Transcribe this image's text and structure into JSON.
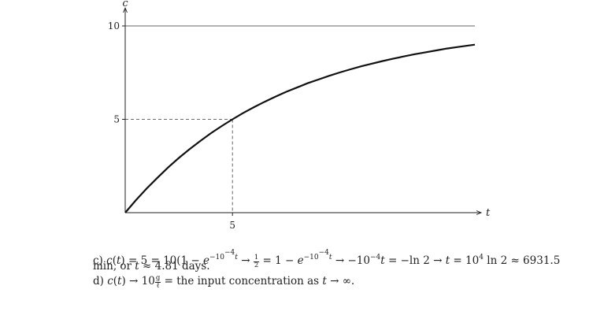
{
  "chart_data": {
    "type": "line",
    "title": "",
    "xlabel": "t",
    "ylabel": "c",
    "xticks": [
      5
    ],
    "yticks": [
      5,
      10
    ],
    "xlim": [
      0,
      16.3
    ],
    "ylim": [
      0,
      10.8
    ],
    "asymptote": 10,
    "marker_point": {
      "x": 5,
      "y": 5
    },
    "series": [
      {
        "x": [
          0,
          0.5,
          1,
          1.5,
          2,
          2.5,
          3,
          3.5,
          4,
          4.5,
          5,
          5.5,
          6,
          6.5,
          7,
          7.5,
          8,
          8.5,
          9,
          9.5,
          10,
          10.5,
          11,
          11.5,
          12,
          12.5,
          13,
          13.5,
          14,
          14.5,
          15,
          15.5,
          16.3
        ],
        "y": [
          0,
          0.67,
          1.29,
          1.87,
          2.42,
          2.93,
          3.4,
          3.84,
          4.26,
          4.64,
          5.0,
          5.34,
          5.65,
          5.94,
          6.21,
          6.47,
          6.7,
          6.93,
          7.13,
          7.33,
          7.51,
          7.68,
          7.84,
          7.98,
          8.12,
          8.25,
          8.37,
          8.49,
          8.59,
          8.69,
          8.79,
          8.87,
          9.0
        ]
      }
    ]
  },
  "answers": {
    "c_label": "c) ",
    "c_line1_lhs": "c",
    "c_value": "5",
    "c_const": "10",
    "c_exp": "−10",
    "c_exp_pow": "−4",
    "c_frac_num": "1",
    "c_frac_den": "2",
    "c_ln_result": "−ln 2",
    "c_t_value": "10",
    "c_t_pow": "4",
    "c_t_approx": "6931.5",
    "c_line2_unit": "min, or",
    "c_days": "4.81",
    "c_days_unit": "days.",
    "d_label": "d) ",
    "d_limit": "10",
    "d_frac_num": "g",
    "d_frac_den": "ℓ",
    "d_text": "= the input concentration as"
  }
}
